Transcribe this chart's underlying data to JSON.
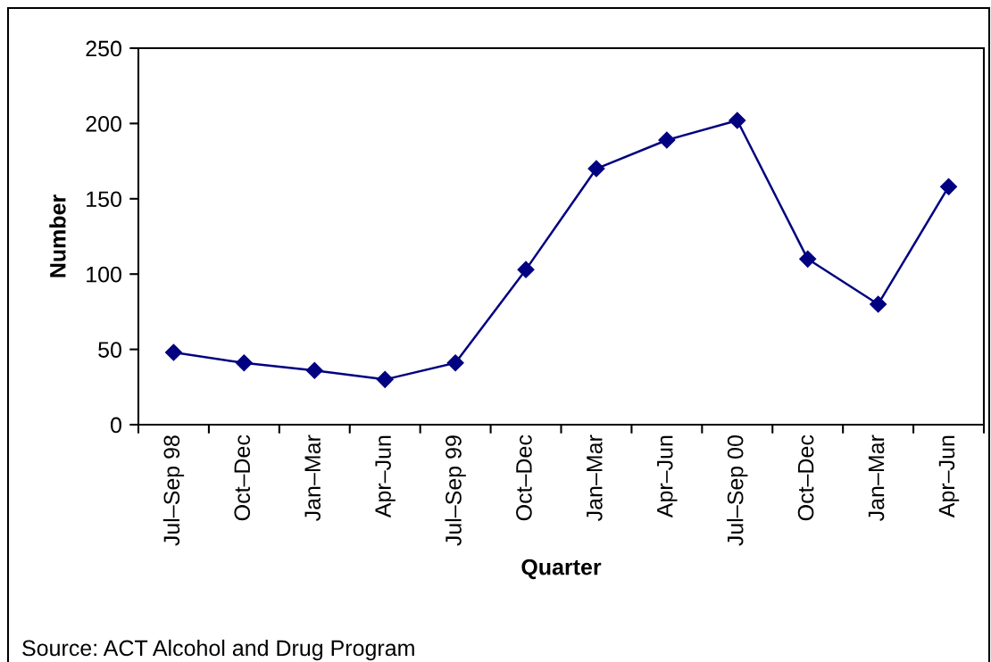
{
  "chart_data": {
    "type": "line",
    "xlabel": "Quarter",
    "ylabel": "Number",
    "categories": [
      "Jul–Sep 98",
      "Oct–Dec",
      "Jan–Mar",
      "Apr–Jun",
      "Jul–Sep 99",
      "Oct–Dec",
      "Jan–Mar",
      "Apr–Jun",
      "Jul–Sep 00",
      "Oct–Dec",
      "Jan–Mar",
      "Apr–Jun"
    ],
    "series": [
      {
        "color": "#000080",
        "values": [
          48,
          41,
          36,
          30,
          41,
          103,
          170,
          189,
          202,
          110,
          80,
          158
        ]
      }
    ],
    "ylim": [
      0,
      250
    ],
    "yticks": [
      0,
      50,
      100,
      150,
      200,
      250
    ],
    "marker": "diamond",
    "line_style": "solid",
    "annotations": [
      "Source: ACT Alcohol and Drug Program"
    ]
  }
}
